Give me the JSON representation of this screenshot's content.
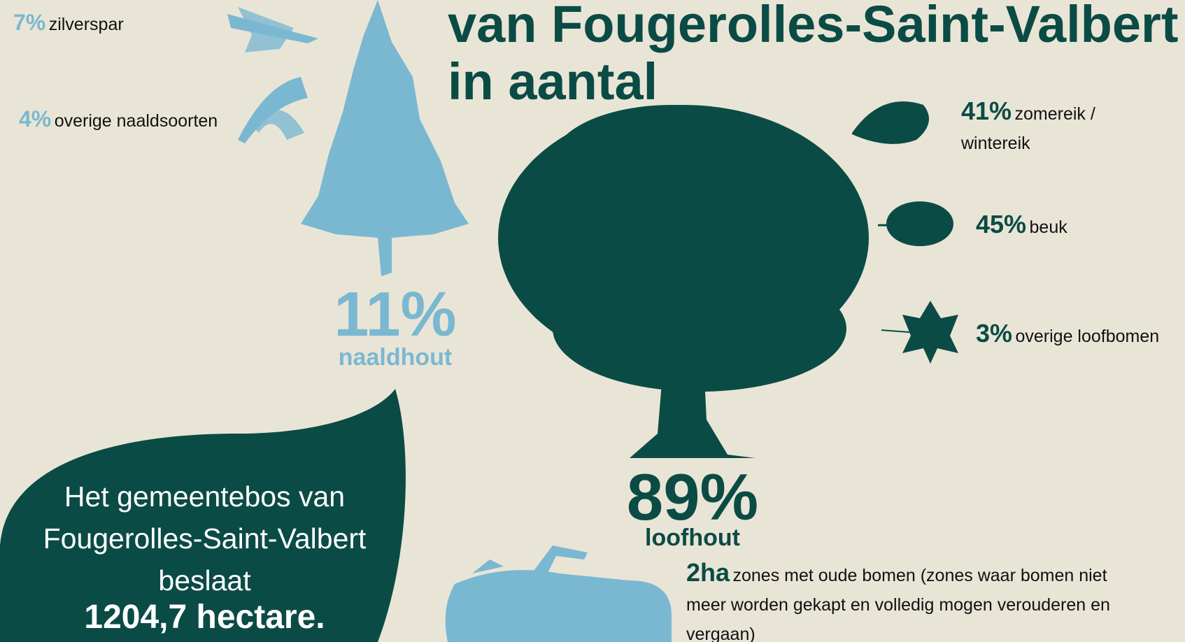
{
  "title": {
    "line1": "van Fougerolles-Saint-Valbert",
    "line2": "in aantal"
  },
  "naaldhout": {
    "share": "11%",
    "label": "naaldhout",
    "species": [
      {
        "share": "7%",
        "label": "zilverspar"
      },
      {
        "share": "4%",
        "label": "overige naaldsoorten"
      }
    ]
  },
  "loofhout": {
    "share": "89%",
    "label": "loofhout",
    "species": [
      {
        "share": "41%",
        "label": "zomereik / wintereik"
      },
      {
        "share": "45%",
        "label": "beuk"
      },
      {
        "share": "3%",
        "label": "overige loofbomen"
      }
    ]
  },
  "old_trees": {
    "amount": "2ha",
    "text": "zones met oude bomen (zones waar bomen niet meer worden gekapt en volledig mogen verouderen en vergaan)"
  },
  "summary": {
    "text": "Het gemeentebos van Fougerolles-Saint-Valbert beslaat",
    "highlight": "1204,7 hectare."
  }
}
